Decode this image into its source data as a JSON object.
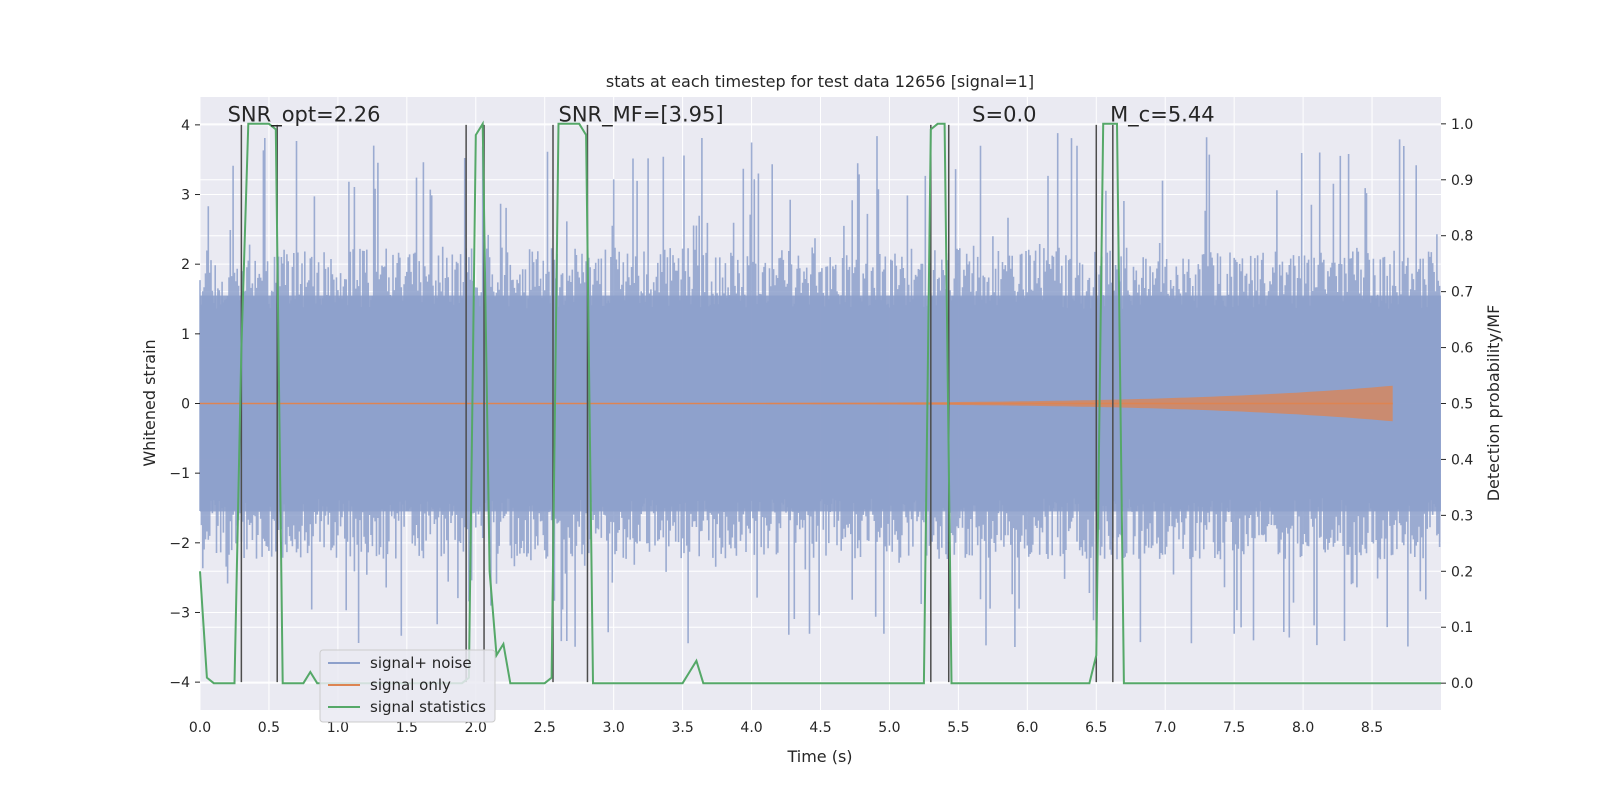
{
  "chart_data": {
    "type": "line",
    "title": "stats at each timestep for test data 12656 [signal=1]",
    "xlabel": "Time (s)",
    "ylabel": "Whitened strain",
    "y2label": "Detection probability/MF",
    "xlim": [
      0.0,
      9.0
    ],
    "ylim": [
      -4.4,
      4.4
    ],
    "y2lim": [
      -0.048,
      1.048
    ],
    "xticks": [
      "0.0",
      "0.5",
      "1.0",
      "1.5",
      "2.0",
      "2.5",
      "3.0",
      "3.5",
      "4.0",
      "4.5",
      "5.0",
      "5.5",
      "6.0",
      "6.5",
      "7.0",
      "7.5",
      "8.0",
      "8.5"
    ],
    "xtick_values": [
      0.0,
      0.5,
      1.0,
      1.5,
      2.0,
      2.5,
      3.0,
      3.5,
      4.0,
      4.5,
      5.0,
      5.5,
      6.0,
      6.5,
      7.0,
      7.5,
      8.0,
      8.5
    ],
    "yticks": [
      "−4",
      "−3",
      "−2",
      "−1",
      "0",
      "1",
      "2",
      "3",
      "4"
    ],
    "ytick_values": [
      -4,
      -3,
      -2,
      -1,
      0,
      1,
      2,
      3,
      4
    ],
    "y2ticks": [
      "0.0",
      "0.1",
      "0.2",
      "0.3",
      "0.4",
      "0.5",
      "0.6",
      "0.7",
      "0.8",
      "0.9",
      "1.0"
    ],
    "y2tick_values": [
      0.0,
      0.1,
      0.2,
      0.3,
      0.4,
      0.5,
      0.6,
      0.7,
      0.8,
      0.9,
      1.0
    ],
    "annotations": [
      {
        "label": "SNR_opt=2.26",
        "x": 0.2
      },
      {
        "label": "SNR_MF=[3.95]",
        "x": 2.6
      },
      {
        "label": "S=0.0",
        "x": 5.6
      },
      {
        "label": "M_c=5.44",
        "x": 6.6
      }
    ],
    "vertical_lines": [
      0.3,
      0.56,
      1.93,
      2.06,
      2.56,
      2.81,
      5.3,
      5.43,
      6.5,
      6.62
    ],
    "series": [
      {
        "name": "signal+ noise",
        "color": "#8da0cb",
        "description": "whitened noisy strain, amplitude roughly within -3.5 to 4",
        "envelope_typical": 1.6,
        "envelope_peak": 3.9
      },
      {
        "name": "signal only",
        "color": "#dd8452",
        "description": "chirp signal growing toward merger",
        "end_time": 8.65,
        "peak_amplitude": 0.25
      },
      {
        "name": "signal statistics",
        "color": "#55a868",
        "axis": "right",
        "x": [
          0.0,
          0.05,
          0.1,
          0.15,
          0.2,
          0.25,
          0.3,
          0.35,
          0.4,
          0.45,
          0.5,
          0.55,
          0.6,
          0.65,
          0.7,
          0.75,
          0.8,
          0.85,
          0.9,
          1.0,
          1.5,
          1.9,
          1.95,
          2.0,
          2.05,
          2.1,
          2.15,
          2.2,
          2.25,
          2.3,
          2.35,
          2.4,
          2.5,
          2.55,
          2.6,
          2.65,
          2.7,
          2.75,
          2.8,
          2.85,
          2.9,
          3.0,
          3.5,
          3.55,
          3.6,
          3.65,
          3.7,
          3.8,
          4.0,
          5.0,
          5.25,
          5.3,
          5.35,
          5.4,
          5.45,
          5.5,
          5.55,
          6.0,
          6.45,
          6.5,
          6.55,
          6.6,
          6.65,
          6.7,
          6.75,
          7.0,
          8.5,
          9.0
        ],
        "y": [
          0.2,
          0.01,
          0.0,
          0.0,
          0.0,
          0.0,
          0.6,
          1.0,
          1.0,
          1.0,
          1.0,
          0.99,
          0.0,
          0.0,
          0.0,
          0.0,
          0.02,
          0.0,
          0.0,
          0.0,
          0.0,
          0.0,
          0.01,
          0.98,
          1.0,
          0.2,
          0.05,
          0.07,
          0.0,
          0.0,
          0.0,
          0.0,
          0.0,
          0.01,
          1.0,
          1.0,
          1.0,
          1.0,
          0.98,
          0.0,
          0.0,
          0.0,
          0.0,
          0.02,
          0.04,
          0.0,
          0.0,
          0.0,
          0.0,
          0.0,
          0.0,
          0.99,
          1.0,
          1.0,
          0.0,
          0.0,
          0.0,
          0.0,
          0.0,
          0.05,
          1.0,
          1.0,
          1.0,
          0.0,
          0.0,
          0.0,
          0.0,
          0.0
        ]
      }
    ],
    "legend": {
      "position": "lower-left",
      "entries": [
        {
          "label": "signal+ noise",
          "color": "#8da0cb"
        },
        {
          "label": "signal only",
          "color": "#dd8452"
        },
        {
          "label": "signal statistics",
          "color": "#55a868"
        }
      ]
    },
    "style": {
      "background": "#eaeaf2",
      "grid_color": "#ffffff",
      "vline_color": "#4d4d4d"
    }
  }
}
